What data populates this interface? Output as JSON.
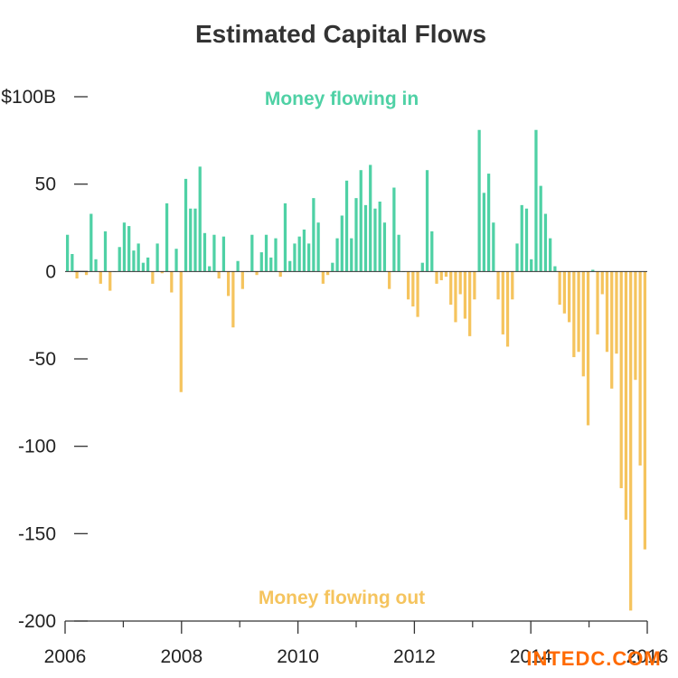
{
  "chart_data": {
    "type": "bar",
    "title": "Estimated Capital Flows",
    "xlabel": "",
    "ylabel": "",
    "unit": "$B (monthly)",
    "ylim": [
      -200,
      100
    ],
    "xlim": [
      2006,
      2016
    ],
    "y_ticks": [
      {
        "value": 100,
        "label": "$100B"
      },
      {
        "value": 50,
        "label": "50"
      },
      {
        "value": 0,
        "label": "0"
      },
      {
        "value": -50,
        "label": "-50"
      },
      {
        "value": -100,
        "label": "-100"
      },
      {
        "value": -150,
        "label": "-150"
      },
      {
        "value": -200,
        "label": "-200"
      }
    ],
    "x_ticks": [
      {
        "value": 2006,
        "label": "2006"
      },
      {
        "value": 2008,
        "label": "2008"
      },
      {
        "value": 2010,
        "label": "2010"
      },
      {
        "value": 2012,
        "label": "2012"
      },
      {
        "value": 2014,
        "label": "2014"
      },
      {
        "value": 2016,
        "label": "2016"
      }
    ],
    "x_minor_ticks": [
      2007,
      2009,
      2011,
      2013,
      2015
    ],
    "annotations": {
      "positive": "Money flowing in",
      "negative": "Money flowing out"
    },
    "colors": {
      "positive": "#4fd1a5",
      "negative": "#f5c45e",
      "axis": "#333333"
    },
    "grid": false,
    "legend": "none",
    "start_month": "2006-01",
    "values": [
      21,
      10,
      -4,
      0,
      -2,
      33,
      7,
      -7,
      23,
      -11,
      0,
      14,
      28,
      26,
      12,
      16,
      5,
      8,
      -7,
      16,
      -1,
      39,
      -12,
      13,
      -69,
      53,
      36,
      36,
      60,
      22,
      3,
      21,
      -4,
      20,
      -14,
      -32,
      6,
      -10,
      0,
      21,
      -2,
      11,
      21,
      8,
      19,
      -3,
      39,
      6,
      16,
      20,
      24,
      16,
      42,
      28,
      -7,
      -2,
      5,
      19,
      32,
      52,
      19,
      42,
      58,
      38,
      61,
      36,
      40,
      28,
      -10,
      48,
      21,
      0,
      -16,
      -20,
      -26,
      5,
      58,
      23,
      -7,
      -5,
      -3,
      -19,
      -29,
      -13,
      -27,
      -37,
      -16,
      81,
      45,
      56,
      28,
      -16,
      -36,
      -43,
      -16,
      16,
      38,
      36,
      7,
      81,
      49,
      33,
      19,
      3,
      -19,
      -24,
      -29,
      -49,
      -46,
      -60,
      -88,
      1,
      -36,
      -13,
      -46,
      -67,
      -47,
      -124,
      -142,
      -194,
      -62,
      -111,
      -159
    ]
  },
  "watermark": "INTEDC.COM"
}
